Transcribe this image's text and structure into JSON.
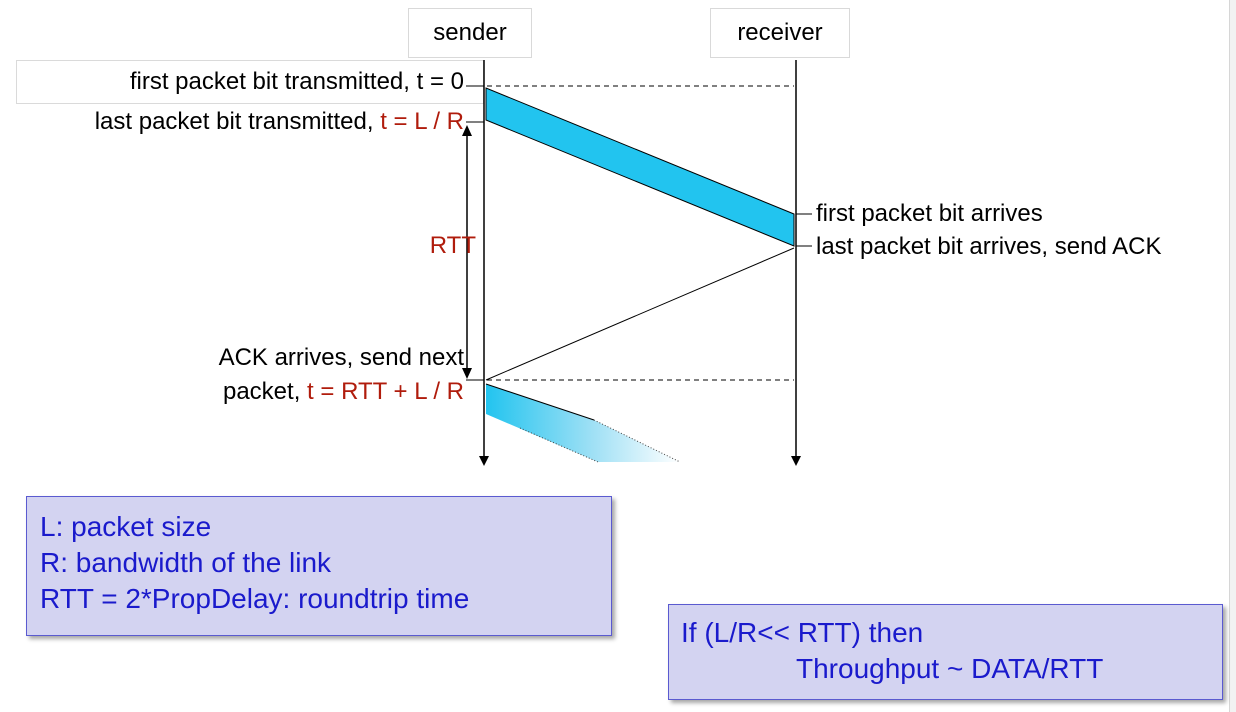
{
  "actors": {
    "sender": "sender",
    "receiver": "receiver"
  },
  "sender_events": {
    "first_bit_sent": {
      "text": "first packet bit transmitted,",
      "time": "t = 0"
    },
    "last_bit_sent": {
      "text": "last packet bit transmitted,",
      "time": "t = L / R"
    },
    "rtt_label": "RTT",
    "ack_arrives_line1": "ACK arrives, send next",
    "ack_arrives_line2": {
      "text": "packet,",
      "time": "t = RTT + L / R"
    }
  },
  "receiver_events": {
    "first_bit_arrives": "first packet bit arrives",
    "last_bit_arrives": "last packet bit arrives, send ACK"
  },
  "legend": {
    "line1": "L: packet size",
    "line2": "R: bandwidth of the link",
    "line3": "RTT = 2*PropDelay: roundtrip time"
  },
  "throughput": {
    "line1": "If (L/R<< RTT) then",
    "line2": "Throughput ~ DATA/RTT"
  },
  "colors": {
    "packet": "#22c4ef",
    "time_red": "#b01c0c",
    "note_bg": "#d3d3f1",
    "note_text": "#1a1acc"
  }
}
